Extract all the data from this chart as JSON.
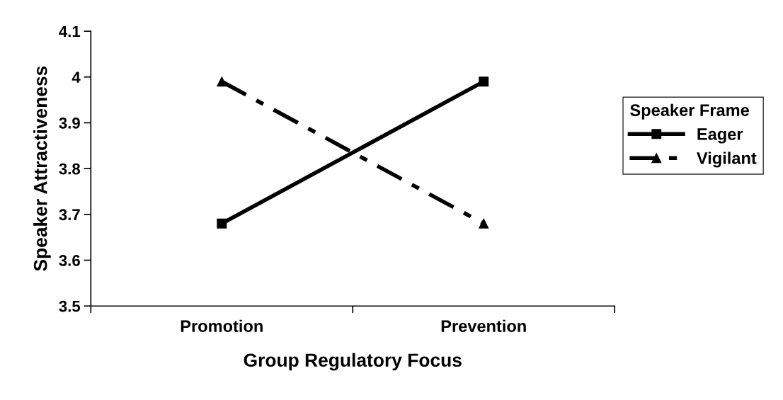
{
  "chart_data": {
    "type": "line",
    "xlabel": "Group Regulatory Focus",
    "ylabel": "Speaker Attractiveness",
    "legend_title": "Speaker Frame",
    "categories": [
      "Promotion",
      "Prevention"
    ],
    "series": [
      {
        "name": "Eager",
        "color": "#000000",
        "values": [
          3.68,
          3.99
        ],
        "marker": "square",
        "line_style": "solid"
      },
      {
        "name": "Vigilant",
        "color": "#000000",
        "values": [
          3.99,
          3.68
        ],
        "marker": "triangle",
        "line_style": "dashdot"
      }
    ],
    "ylim": [
      3.5,
      4.1
    ],
    "yticks": [
      3.5,
      3.6,
      3.7,
      3.8,
      3.9,
      4,
      4.1
    ],
    "grid": false,
    "legend": "right"
  }
}
